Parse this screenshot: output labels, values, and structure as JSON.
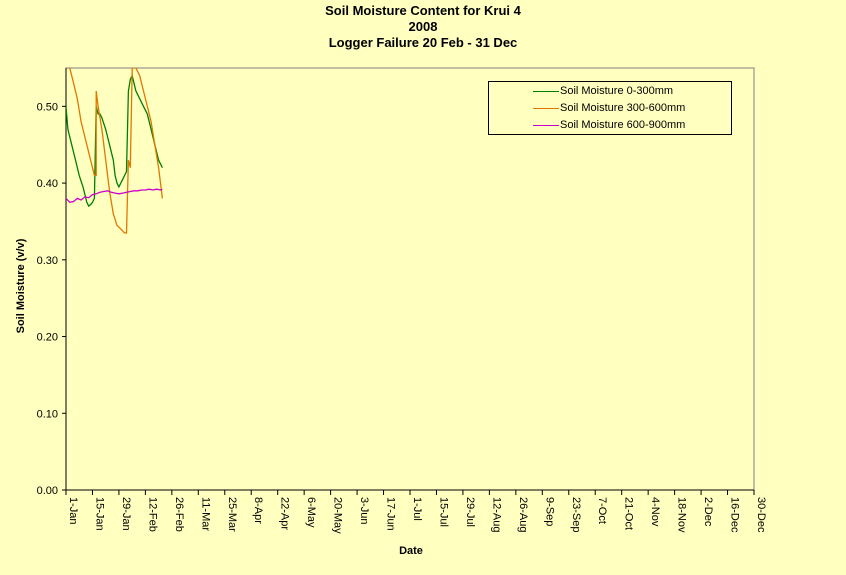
{
  "chart_data": {
    "type": "line",
    "title": [
      "Soil Moisture Content for Krui 4",
      "2008",
      "Logger Failure 20 Feb - 31 Dec"
    ],
    "xlabel": "Date",
    "ylabel": "Soil Moisture (v/v)",
    "ylim": [
      0,
      0.55
    ],
    "yticks": [
      "0.00",
      "0.10",
      "0.20",
      "0.30",
      "0.40",
      "0.50"
    ],
    "xlim": [
      "2008-01-01",
      "2008-12-30"
    ],
    "xticks": [
      "1-Jan",
      "15-Jan",
      "29-Jan",
      "12-Feb",
      "26-Feb",
      "11-Mar",
      "25-Mar",
      "8-Apr",
      "22-Apr",
      "6-May",
      "20-May",
      "3-Jun",
      "17-Jun",
      "1-Jul",
      "15-Jul",
      "29-Jul",
      "12-Aug",
      "26-Aug",
      "9-Sep",
      "23-Sep",
      "7-Oct",
      "21-Oct",
      "4-Nov",
      "18-Nov",
      "2-Dec",
      "16-Dec",
      "30-Dec"
    ],
    "grid": false,
    "legend_position": "top-right",
    "series": [
      {
        "name": "Soil Moisture 0-300mm",
        "color": "#008000",
        "x": [
          "2008-01-01",
          "2008-01-02",
          "2008-01-04",
          "2008-01-06",
          "2008-01-08",
          "2008-01-10",
          "2008-01-12",
          "2008-01-13",
          "2008-01-14",
          "2008-01-15",
          "2008-01-16",
          "2008-01-17",
          "2008-01-18",
          "2008-01-19",
          "2008-01-20",
          "2008-01-22",
          "2008-01-24",
          "2008-01-26",
          "2008-01-27",
          "2008-01-28",
          "2008-01-29",
          "2008-01-30",
          "2008-01-31",
          "2008-02-01",
          "2008-02-02",
          "2008-02-03",
          "2008-02-04",
          "2008-02-05",
          "2008-02-06",
          "2008-02-07",
          "2008-02-09",
          "2008-02-11",
          "2008-02-13",
          "2008-02-15",
          "2008-02-17",
          "2008-02-18",
          "2008-02-19",
          "2008-02-20",
          "2008-02-21"
        ],
        "values": [
          0.5,
          0.47,
          0.45,
          0.43,
          0.41,
          0.395,
          0.375,
          0.37,
          0.372,
          0.375,
          0.38,
          0.5,
          0.49,
          0.49,
          0.485,
          0.47,
          0.45,
          0.43,
          0.41,
          0.4,
          0.395,
          0.4,
          0.405,
          0.41,
          0.415,
          0.52,
          0.535,
          0.54,
          0.53,
          0.52,
          0.51,
          0.5,
          0.49,
          0.47,
          0.45,
          0.44,
          0.43,
          0.425,
          0.42
        ]
      },
      {
        "name": "Soil Moisture 300-600mm",
        "color": "#E07800",
        "x": [
          "2008-01-02",
          "2008-01-03",
          "2008-01-05",
          "2008-01-07",
          "2008-01-09",
          "2008-01-11",
          "2008-01-13",
          "2008-01-14",
          "2008-01-15",
          "2008-01-16",
          "2008-01-17",
          "2008-01-17",
          "2008-01-18",
          "2008-01-20",
          "2008-01-22",
          "2008-01-24",
          "2008-01-26",
          "2008-01-28",
          "2008-01-30",
          "2008-02-01",
          "2008-02-02",
          "2008-02-03",
          "2008-02-04",
          "2008-02-05",
          "2008-02-06",
          "2008-02-07",
          "2008-02-09",
          "2008-02-11",
          "2008-02-13",
          "2008-02-15",
          "2008-02-17",
          "2008-02-19",
          "2008-02-20",
          "2008-02-21"
        ],
        "values": [
          0.55,
          0.55,
          0.53,
          0.51,
          0.48,
          0.46,
          0.44,
          0.43,
          0.42,
          0.41,
          0.41,
          0.52,
          0.5,
          0.47,
          0.43,
          0.39,
          0.36,
          0.345,
          0.34,
          0.335,
          0.335,
          0.43,
          0.42,
          0.55,
          0.55,
          0.55,
          0.54,
          0.52,
          0.5,
          0.48,
          0.45,
          0.42,
          0.4,
          0.38
        ]
      },
      {
        "name": "Soil Moisture 600-900mm",
        "color": "#CC00CC",
        "x": [
          "2008-01-01",
          "2008-01-03",
          "2008-01-05",
          "2008-01-07",
          "2008-01-09",
          "2008-01-11",
          "2008-01-13",
          "2008-01-15",
          "2008-01-17",
          "2008-01-19",
          "2008-01-21",
          "2008-01-23",
          "2008-01-25",
          "2008-01-27",
          "2008-01-29",
          "2008-01-31",
          "2008-02-02",
          "2008-02-04",
          "2008-02-06",
          "2008-02-08",
          "2008-02-10",
          "2008-02-12",
          "2008-02-14",
          "2008-02-16",
          "2008-02-18",
          "2008-02-20",
          "2008-02-21"
        ],
        "values": [
          0.38,
          0.375,
          0.376,
          0.38,
          0.378,
          0.382,
          0.381,
          0.385,
          0.386,
          0.388,
          0.389,
          0.39,
          0.388,
          0.387,
          0.386,
          0.387,
          0.388,
          0.389,
          0.39,
          0.39,
          0.391,
          0.391,
          0.392,
          0.391,
          0.392,
          0.391,
          0.392
        ]
      }
    ]
  }
}
